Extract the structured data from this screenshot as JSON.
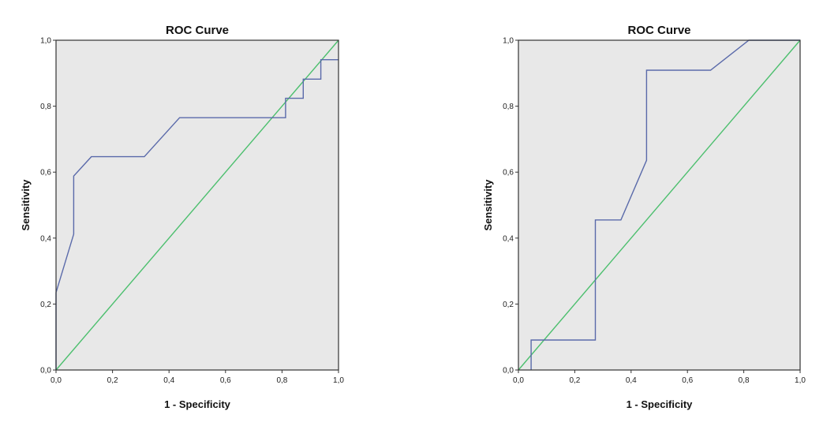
{
  "chart_data": [
    {
      "type": "line",
      "title": "ROC Curve",
      "xlabel": "1 - Specificity",
      "ylabel": "Sensitivity",
      "xlim": [
        0,
        1
      ],
      "ylim": [
        0,
        1
      ],
      "xticks": [
        "0,0",
        "0,2",
        "0,4",
        "0,6",
        "0,8",
        "1,0"
      ],
      "yticks": [
        "0,0",
        "0,2",
        "0,4",
        "0,6",
        "0,8",
        "1,0"
      ],
      "background": "#e8e8e8",
      "series": [
        {
          "name": "roc-curve",
          "color": "#5a6aaa",
          "x": [
            0.0,
            0.0,
            0.0625,
            0.0625,
            0.125,
            0.3125,
            0.4375,
            0.8125,
            0.8125,
            0.875,
            0.875,
            0.9375,
            0.9375,
            1.0
          ],
          "y": [
            0.0,
            0.235,
            0.412,
            0.588,
            0.647,
            0.647,
            0.765,
            0.765,
            0.824,
            0.824,
            0.882,
            0.882,
            0.941,
            0.941
          ]
        },
        {
          "name": "reference-line",
          "color": "#4cbf6e",
          "x": [
            0,
            1
          ],
          "y": [
            0,
            1
          ]
        }
      ]
    },
    {
      "type": "line",
      "title": "ROC Curve",
      "xlabel": "1 - Specificity",
      "ylabel": "Sensitivity",
      "xlim": [
        0,
        1
      ],
      "ylim": [
        0,
        1
      ],
      "xticks": [
        "0,0",
        "0,2",
        "0,4",
        "0,6",
        "0,8",
        "1,0"
      ],
      "yticks": [
        "0,0",
        "0,2",
        "0,4",
        "0,6",
        "0,8",
        "1,0"
      ],
      "background": "#e8e8e8",
      "series": [
        {
          "name": "roc-curve",
          "color": "#5a6aaa",
          "x": [
            0.045,
            0.045,
            0.273,
            0.273,
            0.364,
            0.455,
            0.455,
            0.682,
            0.818,
            1.0
          ],
          "y": [
            0.0,
            0.091,
            0.091,
            0.455,
            0.455,
            0.636,
            0.909,
            0.909,
            1.0,
            1.0
          ]
        },
        {
          "name": "reference-line",
          "color": "#4cbf6e",
          "x": [
            0,
            1
          ],
          "y": [
            0,
            1
          ]
        }
      ]
    }
  ]
}
